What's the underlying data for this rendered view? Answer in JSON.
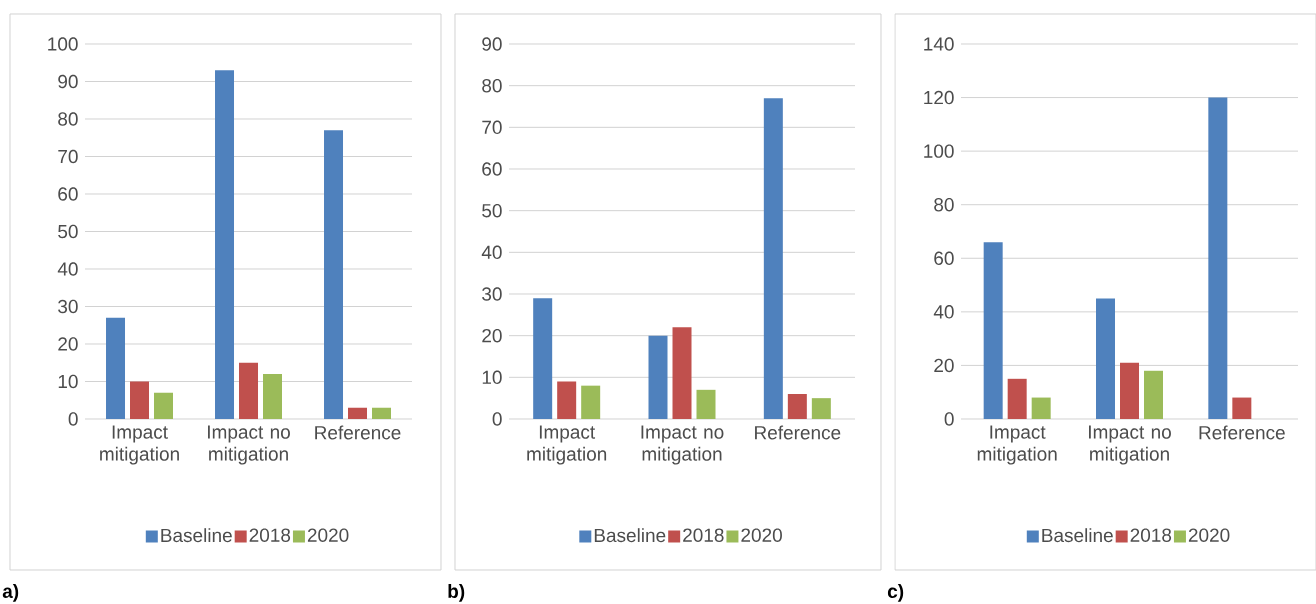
{
  "chart_data": [
    {
      "type": "bar",
      "categories": [
        "Impact mitigation",
        "Impact no mitigation",
        "Reference"
      ],
      "series": [
        {
          "name": "Baseline",
          "color": "#4f81bd",
          "values": [
            27,
            93,
            77
          ]
        },
        {
          "name": "2018",
          "color": "#c0504d",
          "values": [
            10,
            15,
            3
          ]
        },
        {
          "name": "2020",
          "color": "#9bbb59",
          "values": [
            7,
            12,
            3
          ]
        }
      ],
      "ylim": [
        0,
        100
      ],
      "yticks": [
        0,
        10,
        20,
        30,
        40,
        50,
        60,
        70,
        80,
        90,
        100
      ],
      "grid": "y",
      "legend": "bottom",
      "annotations": [
        "a)"
      ]
    },
    {
      "type": "bar",
      "categories": [
        "Impact mitigation",
        "Impact no mitigation",
        "Reference"
      ],
      "series": [
        {
          "name": "Baseline",
          "color": "#4f81bd",
          "values": [
            29,
            20,
            77
          ]
        },
        {
          "name": "2018",
          "color": "#c0504d",
          "values": [
            9,
            22,
            6
          ]
        },
        {
          "name": "2020",
          "color": "#9bbb59",
          "values": [
            8,
            7,
            5
          ]
        }
      ],
      "ylim": [
        0,
        90
      ],
      "yticks": [
        0,
        10,
        20,
        30,
        40,
        50,
        60,
        70,
        80,
        90
      ],
      "grid": "y",
      "legend": "bottom",
      "annotations": [
        "b)"
      ]
    },
    {
      "type": "bar",
      "categories": [
        "Impact mitigation",
        "Impact no mitigation",
        "Reference"
      ],
      "series": [
        {
          "name": "Baseline",
          "color": "#4f81bd",
          "values": [
            66,
            45,
            120
          ]
        },
        {
          "name": "2018",
          "color": "#c0504d",
          "values": [
            15,
            21,
            8
          ]
        },
        {
          "name": "2020",
          "color": "#9bbb59",
          "values": [
            8,
            18,
            null
          ]
        }
      ],
      "ylim": [
        0,
        140
      ],
      "yticks": [
        0,
        20,
        40,
        60,
        80,
        100,
        120,
        140
      ],
      "grid": "y",
      "legend": "bottom",
      "annotations": [
        "c)"
      ]
    }
  ]
}
